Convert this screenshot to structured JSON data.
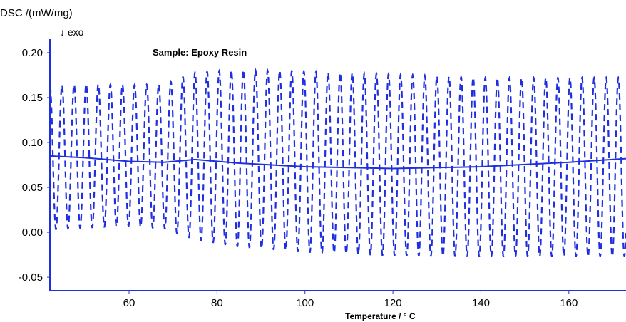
{
  "chart_data": {
    "type": "line",
    "title": "Sample: Epoxy Resin",
    "ylabel": "DSC /(mW/mg)",
    "exo_label": "↓ exo",
    "xlabel": "Temperature / ° C",
    "xlim": [
      42,
      173
    ],
    "ylim": [
      -0.065,
      0.215
    ],
    "x_ticks": [
      60,
      80,
      100,
      120,
      140,
      160
    ],
    "y_ticks": [
      -0.05,
      0.0,
      0.05,
      0.1,
      0.15,
      0.2
    ],
    "y_tick_labels": [
      "-0.05",
      "0.00",
      "0.05",
      "0.10",
      "0.15",
      "0.20"
    ],
    "series": [
      {
        "style": "dashed",
        "oscillation_period": 2.75,
        "upper_envelope": {
          "x": [
            42,
            50,
            60,
            68,
            75,
            85,
            100,
            120,
            140,
            160,
            173
          ],
          "y": [
            0.163,
            0.165,
            0.164,
            0.165,
            0.178,
            0.181,
            0.179,
            0.176,
            0.172,
            0.172,
            0.172
          ]
        },
        "lower_envelope": {
          "x": [
            42,
            50,
            60,
            68,
            75,
            85,
            100,
            120,
            140,
            160,
            173
          ],
          "y": [
            0.003,
            0.005,
            0.007,
            0.004,
            -0.008,
            -0.016,
            -0.022,
            -0.026,
            -0.027,
            -0.027,
            -0.027
          ]
        }
      },
      {
        "style": "solid",
        "x": [
          42,
          50,
          60,
          68,
          75,
          85,
          100,
          120,
          140,
          160,
          173
        ],
        "y": [
          0.085,
          0.083,
          0.079,
          0.078,
          0.081,
          0.077,
          0.073,
          0.071,
          0.073,
          0.078,
          0.082
        ]
      }
    ],
    "colors": {
      "line": "#1f2fe0",
      "axis": "#1f2fe0"
    }
  }
}
